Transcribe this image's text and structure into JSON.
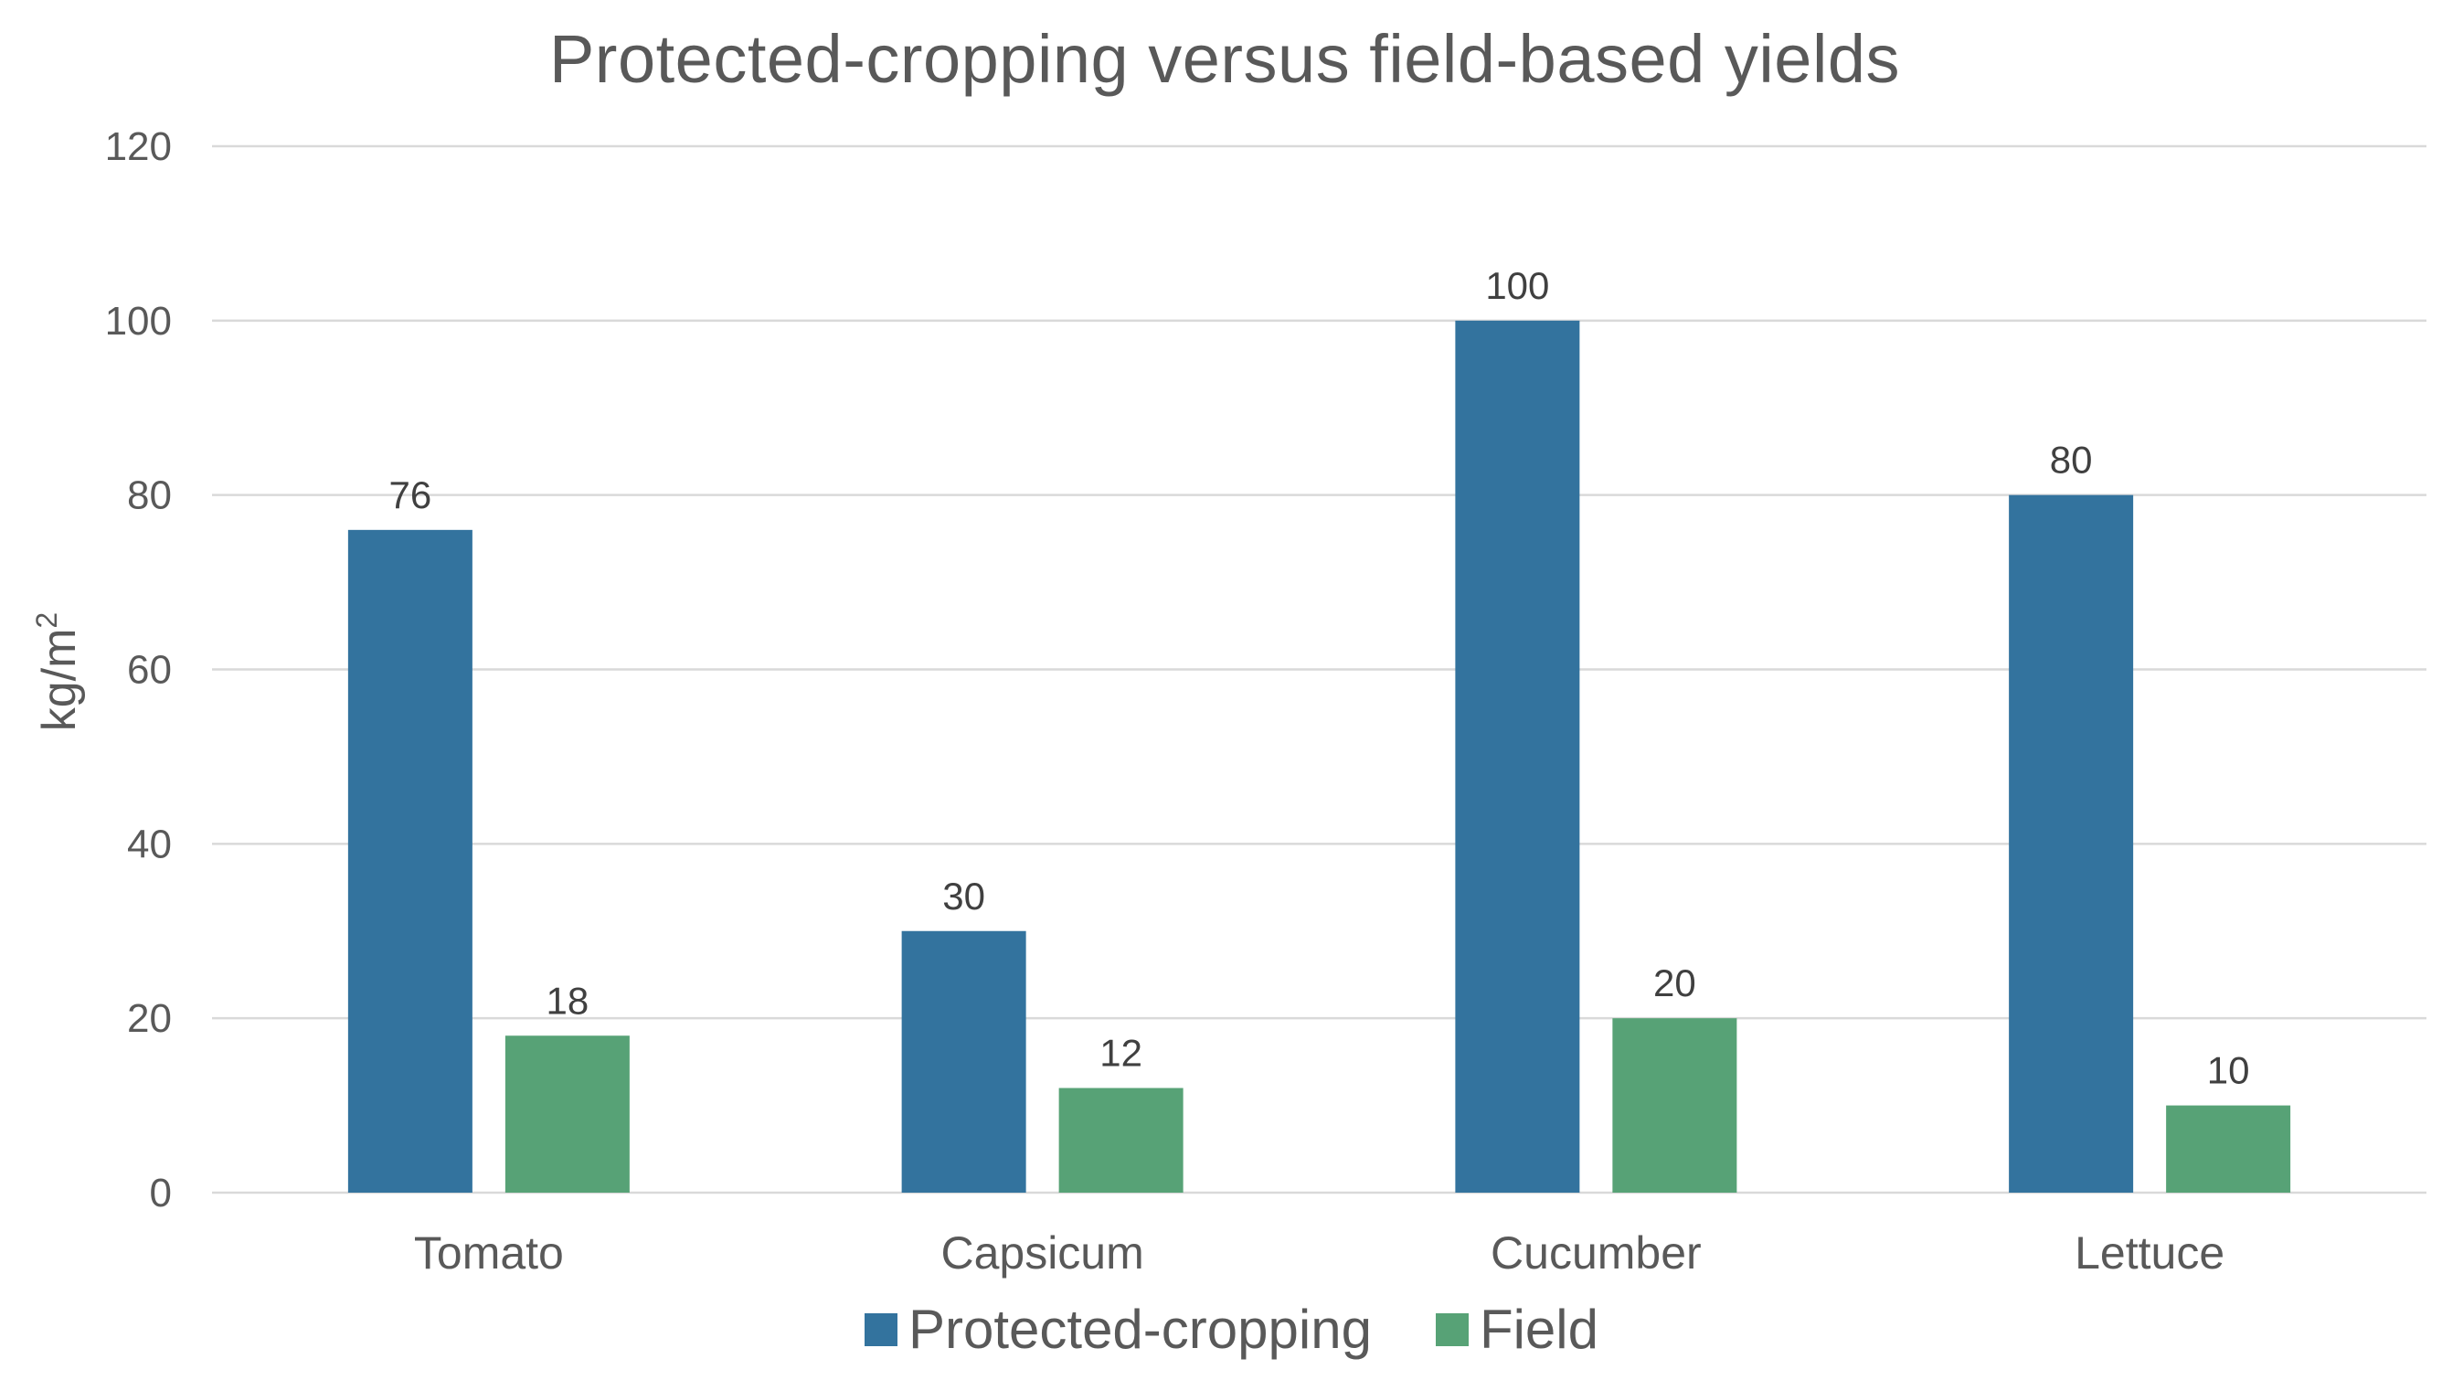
{
  "chart_data": {
    "type": "bar",
    "title": "Protected-cropping versus field-based yields",
    "xlabel": "",
    "ylabel": "kg/m²",
    "ylabel_base": "kg/m",
    "ylabel_sup": "2",
    "categories": [
      "Tomato",
      "Capsicum",
      "Cucumber",
      "Lettuce"
    ],
    "series": [
      {
        "name": "Protected-cropping",
        "color": "#33739E",
        "values": [
          76,
          30,
          100,
          80
        ]
      },
      {
        "name": "Field",
        "color": "#57A276",
        "values": [
          18,
          12,
          20,
          10
        ]
      }
    ],
    "ylim": [
      0,
      120
    ],
    "yticks": [
      0,
      20,
      40,
      60,
      80,
      100,
      120
    ],
    "grid": true,
    "legend_position": "bottom",
    "data_labels": true
  }
}
